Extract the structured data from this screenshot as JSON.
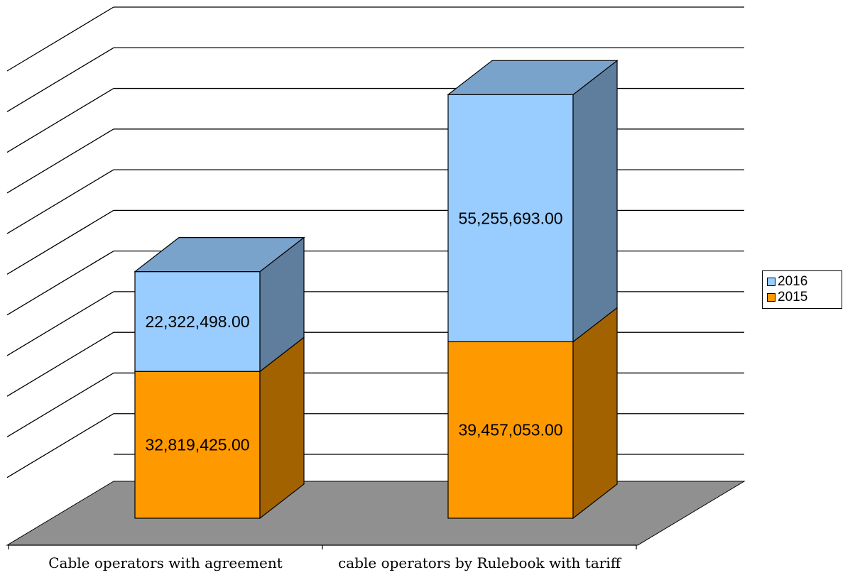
{
  "chart_data": {
    "type": "bar",
    "stacked": true,
    "three_d": true,
    "categories": [
      "Cable operators with agreement",
      "cable operators by Rulebook with tariff"
    ],
    "series": [
      {
        "name": "2015",
        "values": [
          32819425.0,
          39457053.0
        ],
        "labels": [
          "32,819,425.00",
          "39,457,053.00"
        ],
        "color": "#ff9900"
      },
      {
        "name": "2016",
        "values": [
          22322498.0,
          55255693.0
        ],
        "labels": [
          "22,322,498.00",
          "55,255,693.00"
        ],
        "color": "#99ccff"
      }
    ],
    "ylim": [
      0,
      100000000
    ],
    "grid": true,
    "legend_position": "right",
    "floor_color": "#909090"
  },
  "legend": {
    "items": [
      {
        "label": "2016",
        "color": "#99ccff"
      },
      {
        "label": "2015",
        "color": "#ff9900"
      }
    ]
  }
}
